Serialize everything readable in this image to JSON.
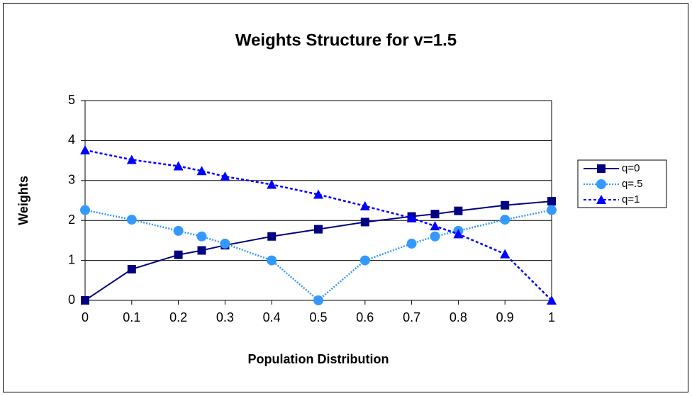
{
  "chart_data": {
    "type": "line",
    "title": "Weights Structure for v=1.5",
    "x_label": "Population Distribution",
    "y_label": "Weights",
    "x": [
      0,
      0.1,
      0.2,
      0.25,
      0.3,
      0.4,
      0.5,
      0.6,
      0.7,
      0.75,
      0.8,
      0.9,
      1
    ],
    "series": [
      {
        "name": "q=0",
        "color": "#000080",
        "marker": "square",
        "line_style": "solid",
        "values": [
          0,
          0.78,
          1.14,
          1.25,
          1.38,
          1.6,
          1.78,
          1.96,
          2.1,
          2.16,
          2.24,
          2.38,
          2.48
        ]
      },
      {
        "name": "q=.5",
        "color": "#3399ff",
        "marker": "circle",
        "line_style": "dotted",
        "values": [
          2.26,
          2.02,
          1.74,
          1.6,
          1.42,
          1.0,
          0,
          1.0,
          1.42,
          1.6,
          1.74,
          2.02,
          2.26
        ]
      },
      {
        "name": "q=1",
        "color": "#0000ff",
        "marker": "triangle",
        "line_style": "dashed",
        "values": [
          3.76,
          3.52,
          3.36,
          3.24,
          3.1,
          2.9,
          2.65,
          2.36,
          2.06,
          1.86,
          1.66,
          1.16,
          0
        ]
      }
    ],
    "xlim": [
      0,
      1
    ],
    "xticks": [
      0,
      0.1,
      0.2,
      0.3,
      0.4,
      0.5,
      0.6,
      0.7,
      0.8,
      0.9,
      1
    ],
    "ylim": [
      0,
      5
    ],
    "yticks": [
      0,
      1,
      2,
      3,
      4,
      5
    ],
    "grid": true,
    "legend": "right"
  }
}
